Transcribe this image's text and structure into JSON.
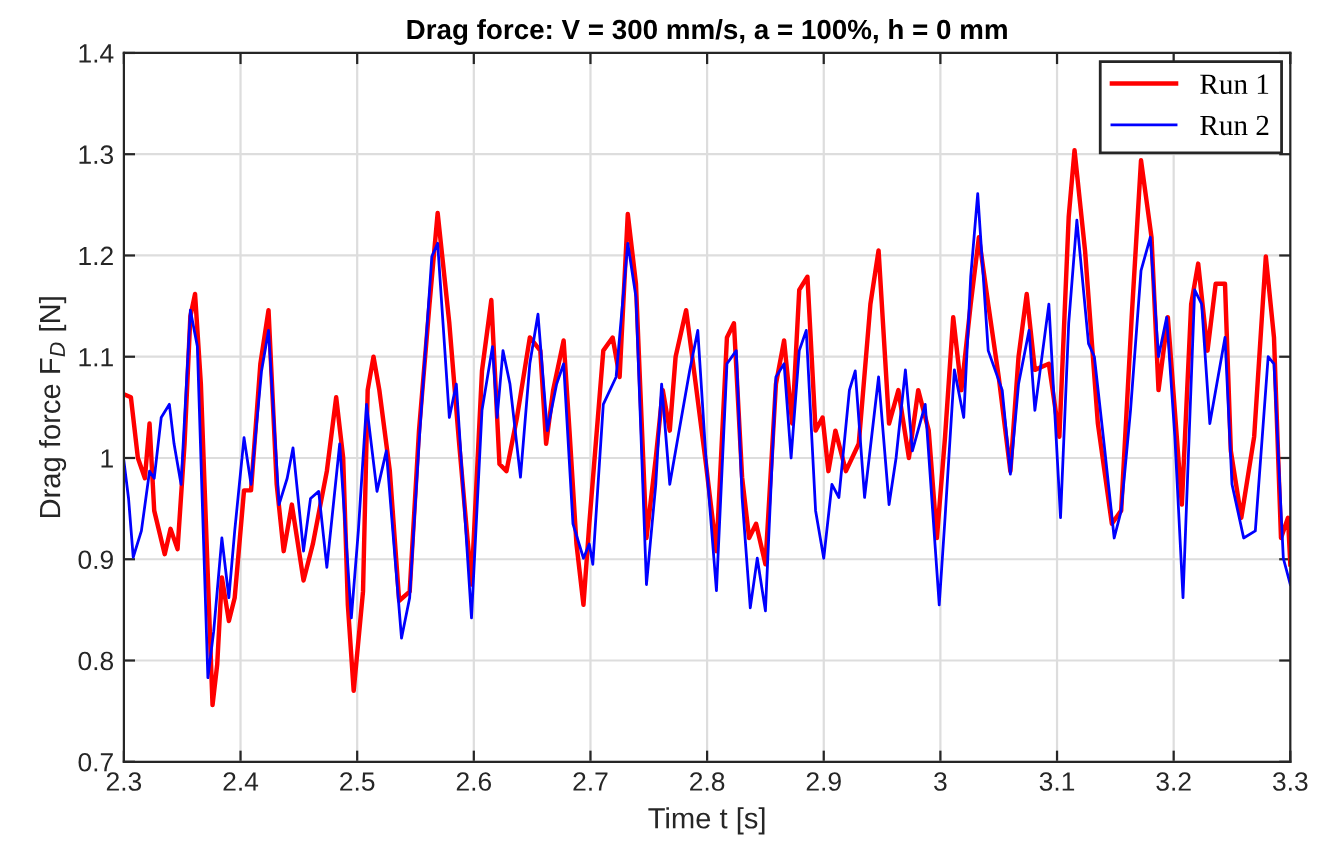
{
  "chart_data": {
    "type": "line",
    "title": "Drag force: V = 300 mm/s, a = 100%, h = 0 mm",
    "xlabel": "Time t [s]",
    "ylabel": "Drag force F$_{D}$ [N]",
    "xlim": [
      2.3,
      3.3
    ],
    "xticks": [
      2.3,
      2.4,
      2.5,
      2.6,
      2.7,
      2.8,
      2.9,
      3,
      3.1,
      3.2,
      3.3
    ],
    "ylim": [
      0.7,
      1.4
    ],
    "yticks": [
      0.7,
      0.8,
      0.9,
      1,
      1.1,
      1.2,
      1.3,
      1.4
    ],
    "grid": true,
    "legend": "top right",
    "marker": "none",
    "line_style": "solid",
    "series": [
      {
        "name": "Run 1",
        "color": "#ff0000",
        "x": [
          2.3,
          2.306,
          2.312,
          2.318,
          2.322,
          2.326,
          2.335,
          2.34,
          2.346,
          2.352,
          2.357,
          2.361,
          2.366,
          2.372,
          2.376,
          2.38,
          2.384,
          2.39,
          2.395,
          2.403,
          2.409,
          2.417,
          2.424,
          2.431,
          2.437,
          2.444,
          2.454,
          2.462,
          2.474,
          2.482,
          2.488,
          2.492,
          2.497,
          2.505,
          2.509,
          2.514,
          2.519,
          2.528,
          2.536,
          2.545,
          2.553,
          2.562,
          2.569,
          2.579,
          2.587,
          2.598,
          2.607,
          2.615,
          2.622,
          2.628,
          2.637,
          2.648,
          2.657,
          2.662,
          2.668,
          2.677,
          2.682,
          2.688,
          2.694,
          2.699,
          2.711,
          2.719,
          2.725,
          2.732,
          2.739,
          2.748,
          2.756,
          2.762,
          2.768,
          2.773,
          2.782,
          2.788,
          2.799,
          2.808,
          2.817,
          2.823,
          2.83,
          2.836,
          2.842,
          2.85,
          2.859,
          2.866,
          2.873,
          2.879,
          2.886,
          2.893,
          2.899,
          2.904,
          2.91,
          2.919,
          2.93,
          2.94,
          2.947,
          2.956,
          2.964,
          2.973,
          2.981,
          2.99,
          2.997,
          3.004,
          3.011,
          3.018,
          3.026,
          3.033,
          3.041,
          3.05,
          3.06,
          3.067,
          3.074,
          3.081,
          3.093,
          3.102,
          3.11,
          3.115,
          3.124,
          3.135,
          3.147,
          3.155,
          3.164,
          3.172,
          3.181,
          3.187,
          3.195,
          3.207,
          3.215,
          3.221,
          3.229,
          3.236,
          3.244,
          3.249,
          3.258,
          3.269,
          3.279,
          3.286,
          3.292,
          3.298,
          3.3
        ],
        "values": [
          1.063,
          1.06,
          1.0,
          0.98,
          1.034,
          0.948,
          0.905,
          0.93,
          0.91,
          1.014,
          1.14,
          1.162,
          1.073,
          0.882,
          0.756,
          0.796,
          0.882,
          0.839,
          0.862,
          0.968,
          0.968,
          1.093,
          1.146,
          0.974,
          0.908,
          0.954,
          0.879,
          0.915,
          0.987,
          1.06,
          1.0,
          0.855,
          0.77,
          0.868,
          1.067,
          1.1,
          1.067,
          0.987,
          0.859,
          0.868,
          1.027,
          1.152,
          1.242,
          1.133,
          1.02,
          0.875,
          1.086,
          1.156,
          0.994,
          0.987,
          1.04,
          1.119,
          1.106,
          1.014,
          1.067,
          1.116,
          1.027,
          0.915,
          0.855,
          0.935,
          1.106,
          1.119,
          1.08,
          1.241,
          1.172,
          0.921,
          1.0,
          1.067,
          1.027,
          1.1,
          1.146,
          1.093,
          0.994,
          0.908,
          1.119,
          1.133,
          0.981,
          0.921,
          0.935,
          0.895,
          1.073,
          1.116,
          1.034,
          1.166,
          1.179,
          1.027,
          1.04,
          0.987,
          1.027,
          0.987,
          1.014,
          1.152,
          1.205,
          1.034,
          1.067,
          1.0,
          1.067,
          1.027,
          0.921,
          1.021,
          1.139,
          1.067,
          1.152,
          1.218,
          1.152,
          1.08,
          0.987,
          1.1,
          1.162,
          1.087,
          1.093,
          1.021,
          1.238,
          1.304,
          1.205,
          1.034,
          0.935,
          0.948,
          1.139,
          1.294,
          1.218,
          1.067,
          1.139,
          0.954,
          1.152,
          1.192,
          1.106,
          1.172,
          1.172,
          1.007,
          0.941,
          1.021,
          1.199,
          1.119,
          0.921,
          0.941,
          0.895
        ]
      },
      {
        "name": "Run 2",
        "color": "#0000ff",
        "x": [
          2.3,
          2.304,
          2.308,
          2.315,
          2.322,
          2.326,
          2.332,
          2.339,
          2.343,
          2.349,
          2.357,
          2.363,
          2.372,
          2.377,
          2.384,
          2.39,
          2.395,
          2.403,
          2.409,
          2.418,
          2.424,
          2.433,
          2.44,
          2.445,
          2.454,
          2.46,
          2.467,
          2.474,
          2.485,
          2.495,
          2.501,
          2.508,
          2.517,
          2.525,
          2.538,
          2.545,
          2.553,
          2.564,
          2.569,
          2.579,
          2.585,
          2.598,
          2.607,
          2.616,
          2.62,
          2.625,
          2.631,
          2.64,
          2.648,
          2.655,
          2.663,
          2.671,
          2.677,
          2.685,
          2.694,
          2.699,
          2.702,
          2.711,
          2.722,
          2.732,
          2.739,
          2.748,
          2.756,
          2.761,
          2.768,
          2.776,
          2.785,
          2.792,
          2.799,
          2.808,
          2.817,
          2.825,
          2.83,
          2.837,
          2.843,
          2.85,
          2.859,
          2.866,
          2.872,
          2.879,
          2.885,
          2.893,
          2.9,
          2.907,
          2.913,
          2.922,
          2.927,
          2.935,
          2.947,
          2.956,
          2.962,
          2.97,
          2.976,
          2.987,
          2.999,
          3.004,
          3.012,
          3.02,
          3.026,
          3.032,
          3.041,
          3.053,
          3.06,
          3.067,
          3.076,
          3.081,
          3.093,
          3.103,
          3.11,
          3.117,
          3.127,
          3.132,
          3.141,
          3.149,
          3.155,
          3.163,
          3.172,
          3.18,
          3.187,
          3.194,
          3.201,
          3.208,
          3.218,
          3.224,
          3.231,
          3.244,
          3.25,
          3.26,
          3.27,
          3.281,
          3.286,
          3.294,
          3.3
        ],
        "values": [
          0.997,
          0.96,
          0.902,
          0.928,
          0.987,
          0.98,
          1.04,
          1.053,
          1.014,
          0.974,
          1.146,
          1.11,
          0.783,
          0.829,
          0.921,
          0.862,
          0.928,
          1.02,
          0.974,
          1.086,
          1.126,
          0.954,
          0.98,
          1.01,
          0.908,
          0.96,
          0.967,
          0.892,
          1.014,
          0.842,
          0.928,
          1.053,
          0.967,
          1.007,
          0.822,
          0.862,
          1.014,
          1.199,
          1.212,
          1.04,
          1.073,
          0.842,
          1.047,
          1.11,
          1.04,
          1.106,
          1.073,
          0.981,
          1.093,
          1.142,
          1.027,
          1.073,
          1.093,
          0.935,
          0.901,
          0.915,
          0.895,
          1.053,
          1.08,
          1.212,
          1.159,
          0.875,
          0.974,
          1.073,
          0.974,
          1.027,
          1.086,
          1.126,
          1.0,
          0.869,
          1.093,
          1.106,
          0.961,
          0.852,
          0.901,
          0.849,
          1.08,
          1.093,
          1.0,
          1.106,
          1.126,
          0.948,
          0.901,
          0.974,
          0.961,
          1.067,
          1.086,
          0.961,
          1.08,
          0.954,
          1.0,
          1.087,
          1.007,
          1.053,
          0.855,
          0.941,
          1.087,
          1.04,
          1.179,
          1.261,
          1.106,
          1.067,
          0.984,
          1.073,
          1.126,
          1.047,
          1.152,
          0.941,
          1.133,
          1.235,
          1.113,
          1.1,
          1.007,
          0.921,
          0.948,
          1.047,
          1.185,
          1.218,
          1.1,
          1.139,
          1.021,
          0.862,
          1.166,
          1.152,
          1.034,
          1.119,
          0.974,
          0.921,
          0.928,
          1.1,
          1.093,
          0.901,
          0.875
        ]
      }
    ]
  }
}
